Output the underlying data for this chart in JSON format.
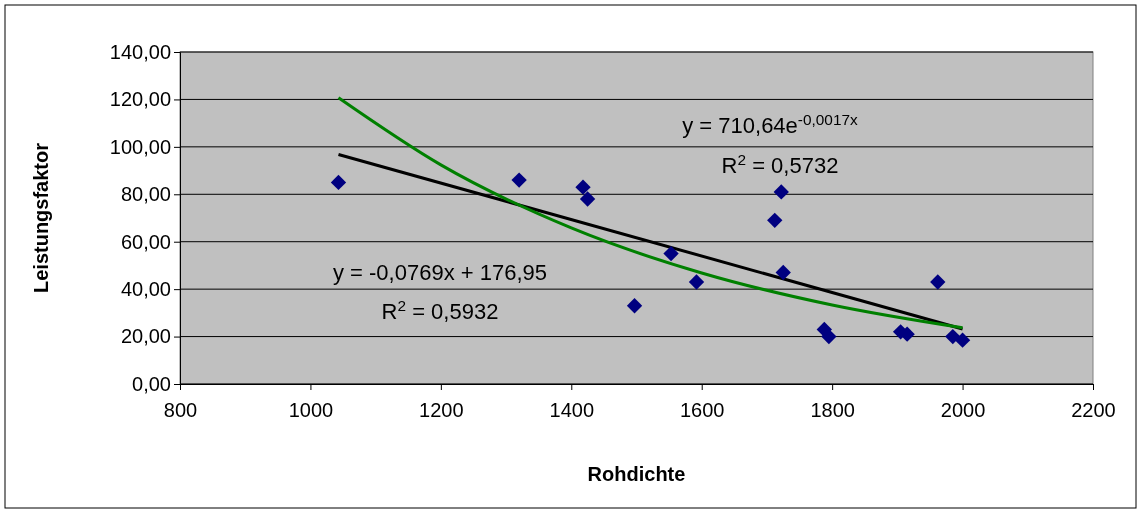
{
  "chart_data": {
    "type": "scatter",
    "xlabel": "Rohdichte",
    "ylabel": "Leistungsfaktor",
    "xlim": [
      800,
      2200
    ],
    "xticks": [
      800,
      1000,
      1200,
      1400,
      1600,
      1800,
      2000,
      2200
    ],
    "ylim": [
      0,
      140
    ],
    "yticks": [
      {
        "value": 0,
        "label": "0,00"
      },
      {
        "value": 20,
        "label": "20,00"
      },
      {
        "value": 40,
        "label": "40,00"
      },
      {
        "value": 60,
        "label": "60,00"
      },
      {
        "value": 80,
        "label": "80,00"
      },
      {
        "value": 100,
        "label": "100,00"
      },
      {
        "value": 120,
        "label": "120,00"
      },
      {
        "value": 140,
        "label": "140,00"
      }
    ],
    "grid": "y",
    "series": [
      {
        "marker": "diamond",
        "color": "#000080",
        "x": [
          1043,
          1320,
          1418,
          1425,
          1497,
          1553,
          1592,
          1712,
          1722,
          1725,
          1788,
          1795,
          1905,
          1915,
          1962,
          1985,
          2000
        ],
        "values": [
          85,
          86,
          83,
          78,
          33,
          55,
          43,
          69,
          81,
          47,
          23,
          20,
          22,
          21,
          43,
          20,
          18.5
        ]
      },
      {
        "type": "line",
        "color": "#000000",
        "x": [
          1043,
          2000
        ],
        "values": [
          96.8,
          23.2
        ]
      },
      {
        "type": "line",
        "color": "#008000",
        "x": [
          1043,
          1200,
          1400,
          1600,
          1800,
          2000
        ],
        "values": [
          120.7,
          92.4,
          65.8,
          46.8,
          33.3,
          23.7
        ]
      }
    ],
    "annotations": [
      "y = -0,0769x + 176,95",
      "R$^{2}$ = 0,5932",
      "y = 710,64e$^{-0,0017x}$",
      "R$^{2}$ = 0,5732"
    ]
  }
}
